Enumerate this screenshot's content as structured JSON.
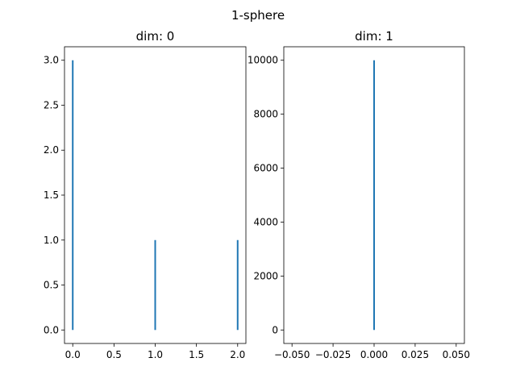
{
  "figure": {
    "suptitle": "1-sphere"
  },
  "chart_data": [
    {
      "type": "bar",
      "style": "vlines",
      "title": "dim: 0",
      "xlabel": "",
      "ylabel": "",
      "x": [
        0,
        1,
        2
      ],
      "values": [
        3,
        1,
        1
      ],
      "xlim": [
        -0.1,
        2.1
      ],
      "ylim": [
        -0.15,
        3.15
      ],
      "xticks": [
        0,
        0.5,
        1,
        1.5,
        2
      ],
      "xtick_labels": [
        "0.0",
        "0.5",
        "1.0",
        "1.5",
        "2.0"
      ],
      "yticks": [
        0,
        0.5,
        1,
        1.5,
        2,
        2.5,
        3
      ],
      "ytick_labels": [
        "0.0",
        "0.5",
        "1.0",
        "1.5",
        "2.0",
        "2.5",
        "3.0"
      ],
      "color": "#1f77b4",
      "grid": false
    },
    {
      "type": "bar",
      "style": "vlines",
      "title": "dim: 1",
      "xlabel": "",
      "ylabel": "",
      "x": [
        0
      ],
      "values": [
        10000
      ],
      "xlim": [
        -0.055,
        0.055
      ],
      "ylim": [
        -500,
        10500
      ],
      "xticks": [
        -0.05,
        -0.025,
        0,
        0.025,
        0.05
      ],
      "xtick_labels": [
        "−0.050",
        "−0.025",
        "0.000",
        "0.025",
        "0.050"
      ],
      "yticks": [
        0,
        2000,
        4000,
        6000,
        8000,
        10000
      ],
      "ytick_labels": [
        "0",
        "2000",
        "4000",
        "6000",
        "8000",
        "10000"
      ],
      "color": "#1f77b4",
      "grid": false
    }
  ]
}
